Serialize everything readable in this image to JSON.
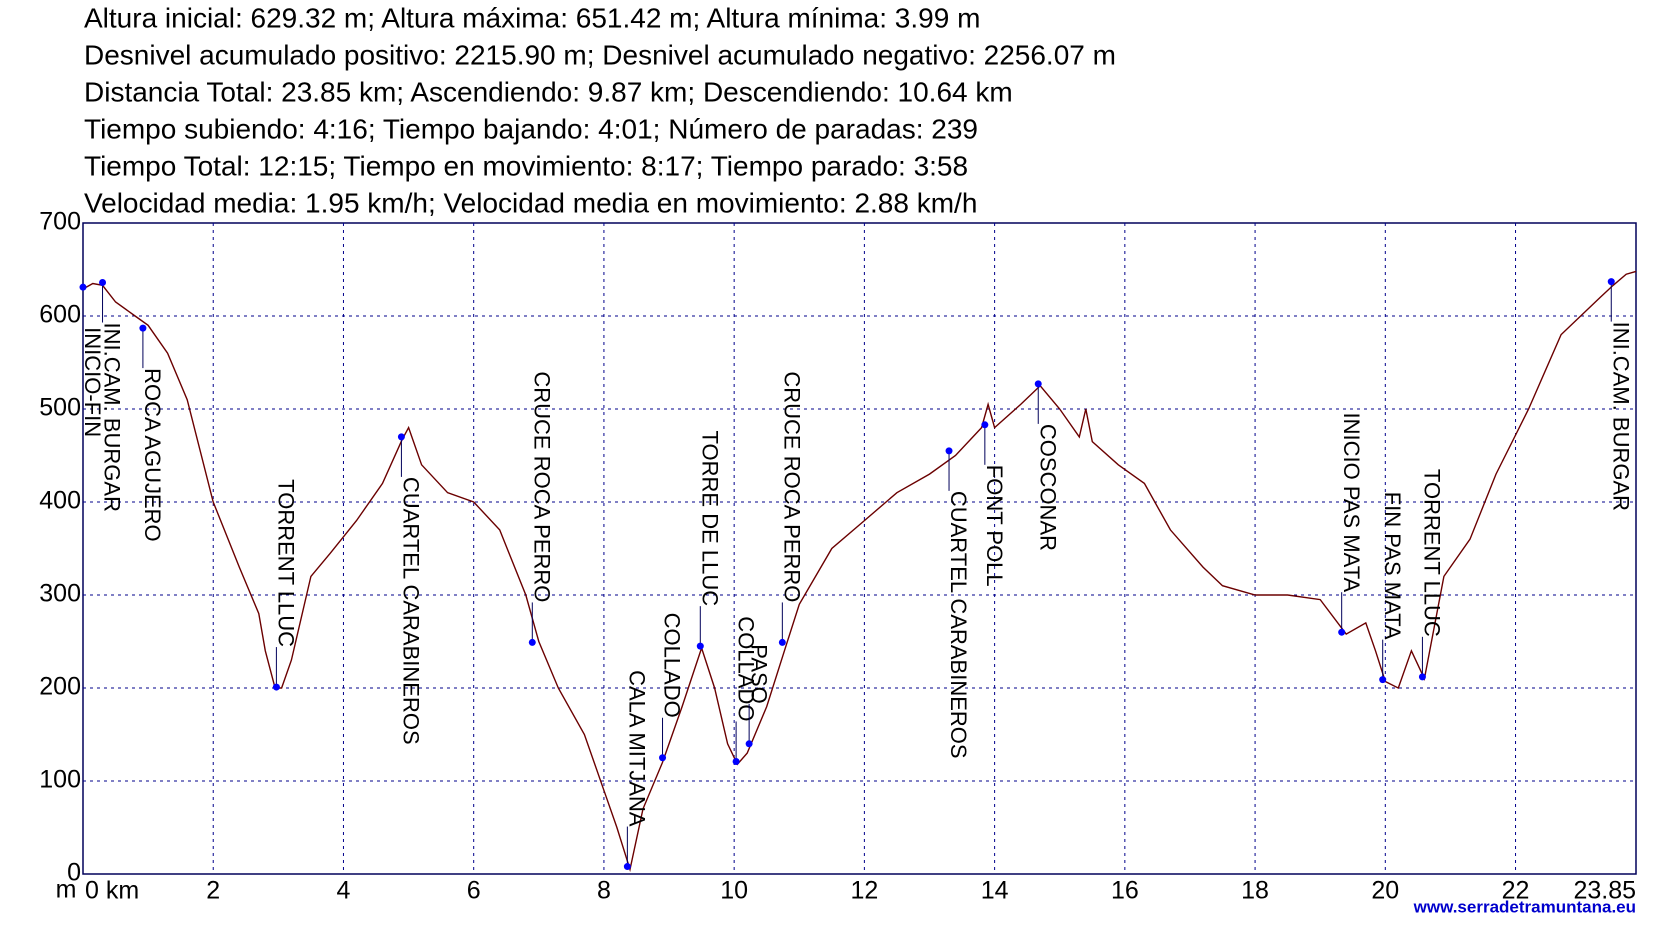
{
  "chart_data": {
    "type": "line",
    "header_lines": [
      "Altura inicial: 629.32 m; Altura máxima: 651.42 m; Altura mínima: 3.99 m",
      "Desnivel acumulado positivo: 2215.90 m; Desnivel acumulado negativo: 2256.07 m",
      "Distancia Total: 23.85 km; Ascendiendo: 9.87 km; Descendiendo: 10.64 km",
      "Tiempo subiendo: 4:16; Tiempo bajando: 4:01; Número de paradas: 239",
      "Tiempo Total: 12:15; Tiempo en movimiento: 8:17; Tiempo parado: 3:58",
      "Velocidad media: 1.95 km/h; Velocidad media en movimiento: 2.88 km/h"
    ],
    "ylabel": "m",
    "x": [
      0,
      0.15,
      0.3,
      0.5,
      0.8,
      1.0,
      1.3,
      1.6,
      2.0,
      2.4,
      2.7,
      2.8,
      2.95,
      3.05,
      3.2,
      3.5,
      3.8,
      4.2,
      4.6,
      4.9,
      5.0,
      5.2,
      5.6,
      6.0,
      6.4,
      6.8,
      7.0,
      7.3,
      7.7,
      8.0,
      8.2,
      8.4,
      8.6,
      8.9,
      9.2,
      9.5,
      9.7,
      9.9,
      10.05,
      10.2,
      10.5,
      10.8,
      11.0,
      11.5,
      12.0,
      12.5,
      13.0,
      13.4,
      13.8,
      13.9,
      14.0,
      14.4,
      14.7,
      15.0,
      15.3,
      15.4,
      15.5,
      15.9,
      16.3,
      16.7,
      17.2,
      17.5,
      18.0,
      18.5,
      19.0,
      19.4,
      19.7,
      19.85,
      20.0,
      20.2,
      20.4,
      20.6,
      20.9,
      21.3,
      21.7,
      22.2,
      22.7,
      23.3,
      23.5,
      23.7,
      23.85
    ],
    "series": [
      {
        "color": "#6b0000",
        "values": [
          629,
          635,
          633,
          615,
          600,
          590,
          560,
          510,
          400,
          330,
          280,
          240,
          200,
          200,
          230,
          320,
          345,
          380,
          420,
          467,
          480,
          440,
          410,
          400,
          370,
          300,
          250,
          200,
          150,
          90,
          50,
          5,
          70,
          120,
          180,
          243,
          200,
          140,
          118,
          130,
          180,
          246,
          290,
          350,
          380,
          410,
          430,
          450,
          480,
          505,
          480,
          505,
          525,
          500,
          470,
          500,
          465,
          440,
          420,
          370,
          330,
          310,
          300,
          300,
          295,
          258,
          270,
          240,
          207,
          200,
          240,
          210,
          320,
          360,
          430,
          500,
          580,
          620,
          633,
          645,
          648
        ]
      }
    ],
    "waypoints": [
      {
        "label": "INICIO-FIN",
        "km": 0,
        "elevation": 631
      },
      {
        "label": "INI.CAM. BURGAR",
        "km": 0.3,
        "elevation": 636
      },
      {
        "label": "ROCA AGUJERO",
        "km": 0.92,
        "elevation": 587
      },
      {
        "label": "TORRENT LLUC",
        "km": 2.97,
        "elevation": 201
      },
      {
        "label": "CUARTEL CARABINEROS",
        "km": 4.89,
        "elevation": 470
      },
      {
        "label": "CRUCE ROCA PERRO",
        "km": 6.9,
        "elevation": 249
      },
      {
        "label": "CALA MITJANA",
        "km": 8.36,
        "elevation": 8
      },
      {
        "label": "COLLADO",
        "km": 8.9,
        "elevation": 125
      },
      {
        "label": "TORRE DE LLUC",
        "km": 9.48,
        "elevation": 245
      },
      {
        "label": "COLLADO",
        "km": 10.03,
        "elevation": 121
      },
      {
        "label": "PASO",
        "km": 10.23,
        "elevation": 140
      },
      {
        "label": "CRUCE ROCA PERRO",
        "km": 10.74,
        "elevation": 249
      },
      {
        "label": "CUARTEL CARABINEROS",
        "km": 13.3,
        "elevation": 455
      },
      {
        "label": "FONT POLL",
        "km": 13.85,
        "elevation": 483
      },
      {
        "label": "COSCONAR",
        "km": 14.67,
        "elevation": 527
      },
      {
        "label": "INICIO PAS MATA",
        "km": 19.33,
        "elevation": 260
      },
      {
        "label": "FIN PAS MATA",
        "km": 19.96,
        "elevation": 209
      },
      {
        "label": "TORRENT LLUC",
        "km": 20.57,
        "elevation": 212
      },
      {
        "label": "INI.CAM. BURGAR",
        "km": 23.47,
        "elevation": 637
      }
    ],
    "waypoint_color": "#0000ff",
    "xlim": [
      0,
      23.85
    ],
    "ylim": [
      0,
      700
    ],
    "xticks": [
      {
        "value": 0,
        "label": "0 km"
      },
      2,
      4,
      6,
      8,
      10,
      12,
      14,
      16,
      18,
      20,
      22,
      23.85
    ],
    "yticks": [
      0,
      100,
      200,
      300,
      400,
      500,
      600,
      700
    ],
    "grid": true,
    "grid_color": "#00008b",
    "watermark": "www.serradetramuntana.eu"
  }
}
